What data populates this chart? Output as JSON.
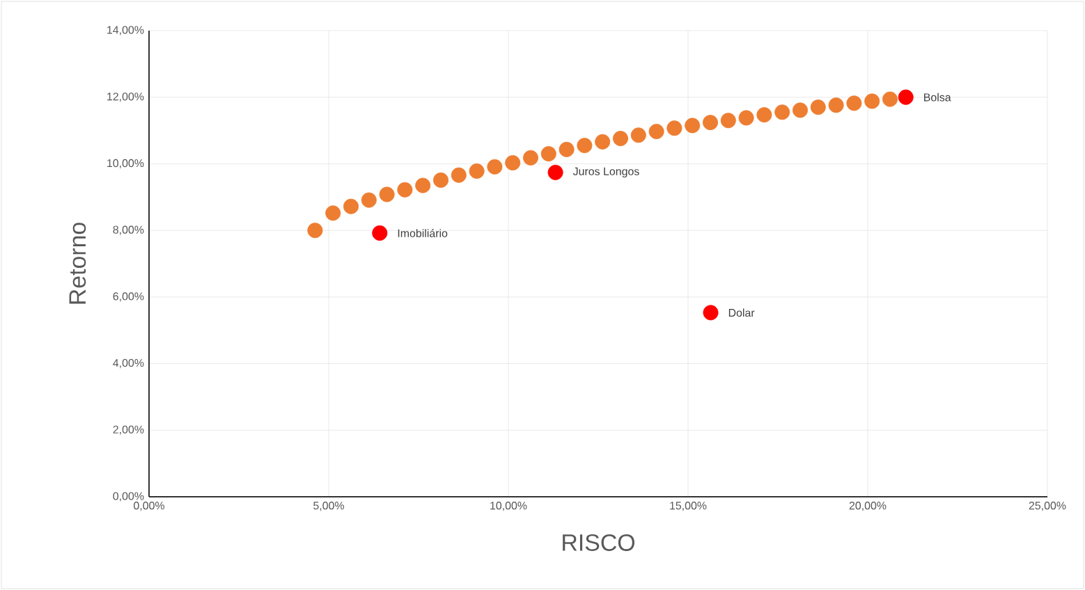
{
  "chart_data": {
    "type": "scatter",
    "xlabel": "RISCO",
    "ylabel": "Retorno",
    "xlim": [
      0,
      25
    ],
    "ylim": [
      0,
      14
    ],
    "xticks": [
      {
        "value": 0,
        "label": "0,00%"
      },
      {
        "value": 5,
        "label": "5,00%"
      },
      {
        "value": 10,
        "label": "10,00%"
      },
      {
        "value": 15,
        "label": "15,00%"
      },
      {
        "value": 20,
        "label": "20,00%"
      },
      {
        "value": 25,
        "label": "25,00%"
      }
    ],
    "yticks": [
      {
        "value": 0,
        "label": "0,00%"
      },
      {
        "value": 2,
        "label": "2,00%"
      },
      {
        "value": 4,
        "label": "4,00%"
      },
      {
        "value": 6,
        "label": "6,00%"
      },
      {
        "value": 8,
        "label": "8,00%"
      },
      {
        "value": 10,
        "label": "10,00%"
      },
      {
        "value": 12,
        "label": "12,00%"
      },
      {
        "value": 14,
        "label": "14,00%"
      }
    ],
    "grid": true,
    "series": [
      {
        "color": "#ed7d31",
        "x": [
          4.62,
          5.12,
          5.62,
          6.12,
          6.62,
          7.12,
          7.62,
          8.12,
          8.62,
          9.12,
          9.62,
          10.12,
          10.62,
          11.12,
          11.62,
          12.12,
          12.62,
          13.12,
          13.62,
          14.12,
          14.62,
          15.12,
          15.62,
          16.12,
          16.62,
          17.12,
          17.62,
          18.12,
          18.62,
          19.12,
          19.62,
          20.12,
          20.62
        ],
        "values": [
          8.0,
          8.52,
          8.72,
          8.91,
          9.08,
          9.22,
          9.35,
          9.51,
          9.66,
          9.78,
          9.91,
          10.03,
          10.18,
          10.3,
          10.43,
          10.55,
          10.66,
          10.76,
          10.86,
          10.97,
          11.07,
          11.15,
          11.24,
          11.3,
          11.38,
          11.47,
          11.55,
          11.61,
          11.7,
          11.76,
          11.82,
          11.88,
          11.94
        ]
      },
      {
        "color": "#ff0000",
        "x": [
          6.42,
          11.31,
          15.63,
          21.06
        ],
        "values": [
          7.92,
          9.74,
          5.53,
          12.0
        ]
      }
    ],
    "annotations": [
      {
        "text": "Imobiliário",
        "x": 6.42,
        "y": 7.92
      },
      {
        "text": "Juros Longos",
        "x": 11.31,
        "y": 9.74
      },
      {
        "text": "Dolar",
        "x": 15.63,
        "y": 5.53
      },
      {
        "text": "Bolsa",
        "x": 21.06,
        "y": 12.0
      }
    ]
  }
}
